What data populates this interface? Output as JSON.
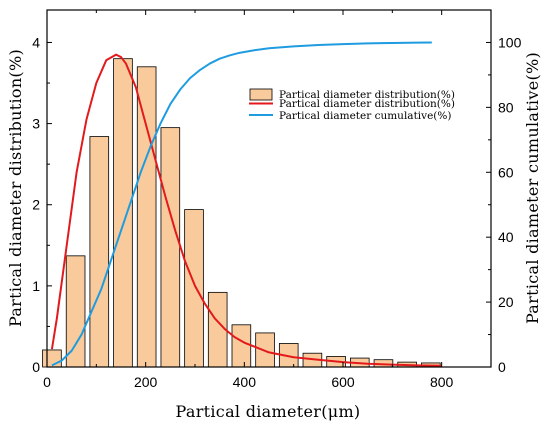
{
  "chart_data": {
    "type": "bar",
    "xlabel": "Partical diameter(μm)",
    "ylabel": "Partical diameter distribution(%)",
    "y2label": "Partical diameter cumulative(%)",
    "xlim": [
      0,
      900
    ],
    "ylim": [
      0,
      4.4
    ],
    "y2lim": [
      0,
      110
    ],
    "xticks": [
      0,
      200,
      400,
      600,
      800
    ],
    "yticks": [
      0,
      1,
      2,
      3,
      4
    ],
    "y2ticks": [
      0,
      20,
      40,
      60,
      80,
      100
    ],
    "legend_position": "top-right",
    "colors": {
      "bar_fill": "#F9CB9C",
      "bar_edge": "#000000",
      "fit_line": "#E31A1C",
      "cumulative_line": "#1F9CE0"
    },
    "series": [
      {
        "name": "Partical diameter distribution(%)",
        "type": "bar",
        "bar_width": 38,
        "x": [
          10,
          58,
          106,
          154,
          202,
          250,
          298,
          346,
          394,
          442,
          490,
          538,
          586,
          634,
          682,
          730,
          778
        ],
        "values": [
          0.21,
          1.37,
          2.84,
          3.8,
          3.7,
          2.95,
          1.94,
          0.92,
          0.52,
          0.42,
          0.29,
          0.17,
          0.13,
          0.11,
          0.09,
          0.06,
          0.05
        ]
      },
      {
        "name": "Partical diameter distribution(%)",
        "type": "line",
        "axis": "left",
        "x": [
          10,
          20,
          40,
          60,
          80,
          100,
          120,
          140,
          150,
          160,
          180,
          200,
          220,
          240,
          260,
          280,
          300,
          320,
          340,
          360,
          380,
          400,
          450,
          500,
          550,
          600,
          650,
          700,
          750,
          800
        ],
        "values": [
          0.22,
          0.6,
          1.5,
          2.4,
          3.05,
          3.5,
          3.78,
          3.85,
          3.82,
          3.74,
          3.45,
          3.0,
          2.55,
          2.1,
          1.68,
          1.3,
          1.0,
          0.78,
          0.6,
          0.47,
          0.37,
          0.3,
          0.18,
          0.12,
          0.09,
          0.06,
          0.04,
          0.03,
          0.02,
          0.015
        ]
      },
      {
        "name": "Partical diameter cumulative(%)",
        "type": "line",
        "axis": "right",
        "x": [
          10,
          30,
          50,
          70,
          90,
          110,
          130,
          150,
          170,
          190,
          210,
          230,
          250,
          270,
          290,
          310,
          330,
          350,
          370,
          390,
          420,
          450,
          500,
          550,
          600,
          650,
          700,
          750,
          780
        ],
        "values": [
          0.5,
          2,
          5,
          10,
          17,
          24,
          33,
          42,
          51,
          60,
          68,
          75,
          81,
          85.5,
          89,
          91.5,
          93.5,
          95,
          96,
          96.8,
          97.6,
          98.2,
          98.8,
          99.2,
          99.5,
          99.7,
          99.85,
          99.95,
          100
        ]
      }
    ]
  }
}
